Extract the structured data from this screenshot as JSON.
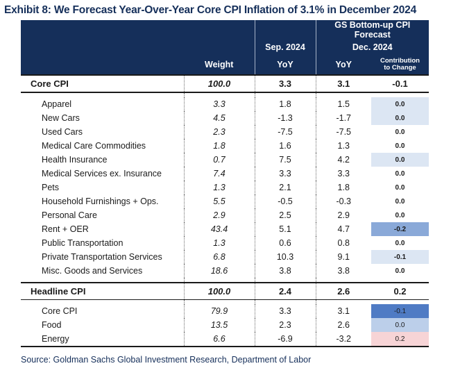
{
  "title": "Exhibit 8: We Forecast Year-Over-Year Core CPI Inflation of 3.1% in December 2024",
  "header": {
    "gs_forecast": "GS Bottom-up CPI Forecast",
    "sep_2024": "Sep. 2024",
    "dec_2024": "Dec. 2024",
    "weight": "Weight",
    "yoy_sep": "YoY",
    "yoy_dec": "YoY",
    "contribution_line1": "Contribution",
    "contribution_line2": "to Change"
  },
  "core_cpi": {
    "label": "Core CPI",
    "weight": "100.0",
    "sep": "3.3",
    "dec": "3.1",
    "contribution": "-0.1",
    "components": [
      {
        "label": "Apparel",
        "weight": "3.3",
        "sep": "1.8",
        "dec": "1.5",
        "contribution": "0.0"
      },
      {
        "label": "New Cars",
        "weight": "4.5",
        "sep": "-1.3",
        "dec": "-1.7",
        "contribution": "0.0"
      },
      {
        "label": "Used Cars",
        "weight": "2.3",
        "sep": "-7.5",
        "dec": "-7.5",
        "contribution": "0.0"
      },
      {
        "label": "Medical Care Commodities",
        "weight": "1.8",
        "sep": "1.6",
        "dec": "1.3",
        "contribution": "0.0"
      },
      {
        "label": "Health Insurance",
        "weight": "0.7",
        "sep": "7.5",
        "dec": "4.2",
        "contribution": "0.0"
      },
      {
        "label": "Medical Services ex. Insurance",
        "weight": "7.4",
        "sep": "3.3",
        "dec": "3.3",
        "contribution": "0.0"
      },
      {
        "label": "Pets",
        "weight": "1.3",
        "sep": "2.1",
        "dec": "1.8",
        "contribution": "0.0"
      },
      {
        "label": "Household Furnishings + Ops.",
        "weight": "5.5",
        "sep": "-0.5",
        "dec": "-0.3",
        "contribution": "0.0"
      },
      {
        "label": "Personal Care",
        "weight": "2.9",
        "sep": "2.5",
        "dec": "2.9",
        "contribution": "0.0"
      },
      {
        "label": "Rent + OER",
        "weight": "43.4",
        "sep": "5.1",
        "dec": "4.7",
        "contribution": "-0.2"
      },
      {
        "label": "Public Transportation",
        "weight": "1.3",
        "sep": "0.6",
        "dec": "0.8",
        "contribution": "0.0"
      },
      {
        "label": "Private Transportation Services",
        "weight": "6.8",
        "sep": "10.3",
        "dec": "9.1",
        "contribution": "-0.1"
      },
      {
        "label": "Misc. Goods and Services",
        "weight": "18.6",
        "sep": "3.8",
        "dec": "3.8",
        "contribution": "0.0"
      }
    ]
  },
  "headline_cpi": {
    "label": "Headline CPI",
    "weight": "100.0",
    "sep": "2.4",
    "dec": "2.6",
    "contribution": "0.2",
    "components": [
      {
        "label": "Core CPI",
        "weight": "79.9",
        "sep": "3.3",
        "dec": "3.1",
        "contribution": "-0.1"
      },
      {
        "label": "Food",
        "weight": "13.5",
        "sep": "2.3",
        "dec": "2.6",
        "contribution": "0.0"
      },
      {
        "label": "Energy",
        "weight": "6.6",
        "sep": "-6.9",
        "dec": "-3.2",
        "contribution": "0.2"
      }
    ]
  },
  "colors": {
    "header_bg": "#152f5a",
    "title_text": "#152f5a",
    "shade_pale_blue": "#dce6f3",
    "shade_mid_blue": "#8aa9d8",
    "shade_strong_blue": "#4f7bc4",
    "shade_light_blue": "#bccfea",
    "shade_light_red": "#f7d4d6"
  },
  "source": "Source: Goldman Sachs Global Investment Research, Department of Labor"
}
